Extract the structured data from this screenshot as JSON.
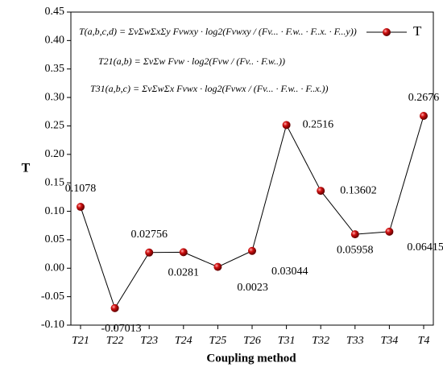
{
  "chart_data": {
    "type": "line",
    "x_label": "Coupling method",
    "y_label": "T",
    "categories": [
      "T21",
      "T22",
      "T23",
      "T24",
      "T25",
      "T26",
      "T31",
      "T32",
      "T33",
      "T34",
      "T4"
    ],
    "series": [
      {
        "name": "T",
        "color": "#c00000",
        "values": [
          0.1078,
          -0.07013,
          0.02756,
          0.0281,
          0.0023,
          0.03044,
          0.2516,
          0.13602,
          0.05958,
          0.06415,
          0.2676
        ]
      }
    ],
    "ylim": [
      -0.1,
      0.45
    ],
    "yticks": [
      {
        "value": -0.1,
        "label": "-0.10"
      },
      -0.05,
      {
        "value": 0,
        "label": "0.00"
      },
      0.05,
      {
        "value": 0.1,
        "label": "0.10"
      },
      0.15,
      {
        "value": 0.2,
        "label": "0.20"
      },
      0.25,
      {
        "value": 0.3,
        "label": "0.30"
      },
      0.35,
      {
        "value": 0.4,
        "label": "0.40"
      },
      0.45
    ],
    "legend": "upper right",
    "annotations": [
      "T(a,b,c,d) = ΣvΣwΣxΣy Fvwxy · log2(Fvwxy / (Fv... · F.w.. · F..x. · F...y))",
      "T21(a,b) = ΣvΣw Fvw · log2(Fvw / (Fv.. · F.w..))",
      "T31(a,b,c) = ΣvΣwΣx Fvwx · log2(Fvwx / (Fv... · F.w.. · F..x.))"
    ]
  }
}
